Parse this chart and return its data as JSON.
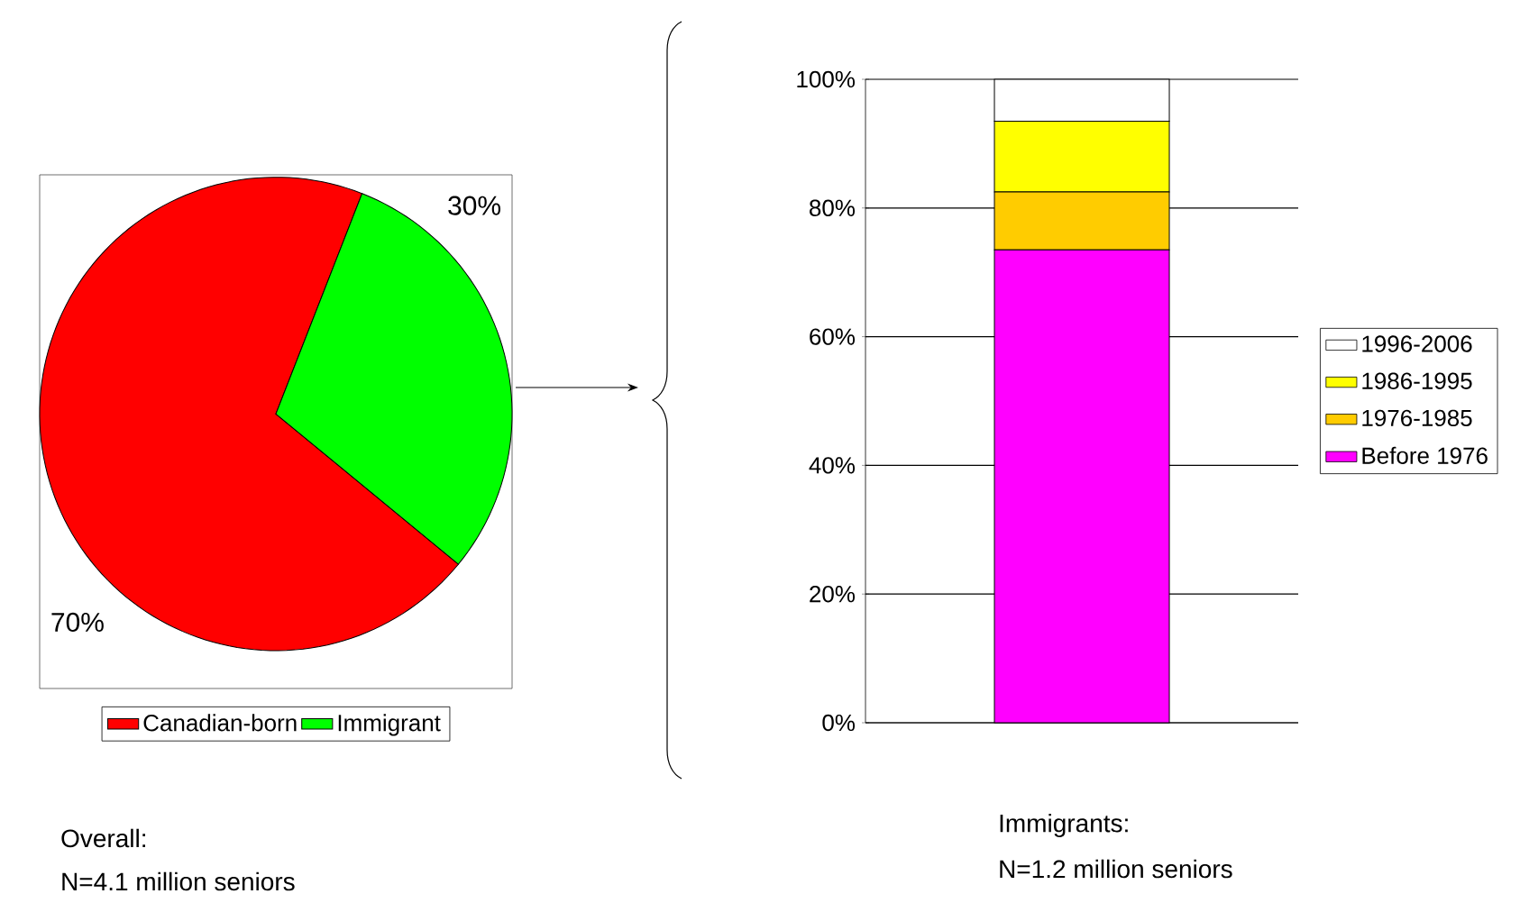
{
  "chart_data": [
    {
      "type": "pie",
      "categories": [
        "Canadian-born",
        "Immigrant"
      ],
      "values": [
        70,
        30
      ],
      "colors": [
        "#ff0000",
        "#00ff00"
      ],
      "value_labels": [
        "70%",
        "30%"
      ],
      "legend": "bottom",
      "annotations": [
        "Overall:",
        "N=4.1 million seniors"
      ]
    },
    {
      "type": "bar",
      "stacked": true,
      "categories": [
        null
      ],
      "series": [
        {
          "name": "Before 1976",
          "color": "#ff00ff",
          "values": [
            73.5
          ]
        },
        {
          "name": "1976-1985",
          "color": "#ffcc00",
          "values": [
            9
          ]
        },
        {
          "name": "1986-1995",
          "color": "#ffff00",
          "values": [
            11
          ]
        },
        {
          "name": "1996-2006",
          "color": "#ffffff",
          "values": [
            6.5
          ]
        }
      ],
      "ylim": [
        0,
        100
      ],
      "yticks": [
        {
          "value": 0,
          "label": "0%"
        },
        {
          "value": 20,
          "label": "20%"
        },
        {
          "value": 40,
          "label": "40%"
        },
        {
          "value": 60,
          "label": "60%"
        },
        {
          "value": 80,
          "label": "80%"
        },
        {
          "value": 100,
          "label": "100%"
        }
      ],
      "grid": "y",
      "legend": "right",
      "annotations": [
        "Immigrants:",
        "N=1.2 million seniors"
      ]
    }
  ]
}
